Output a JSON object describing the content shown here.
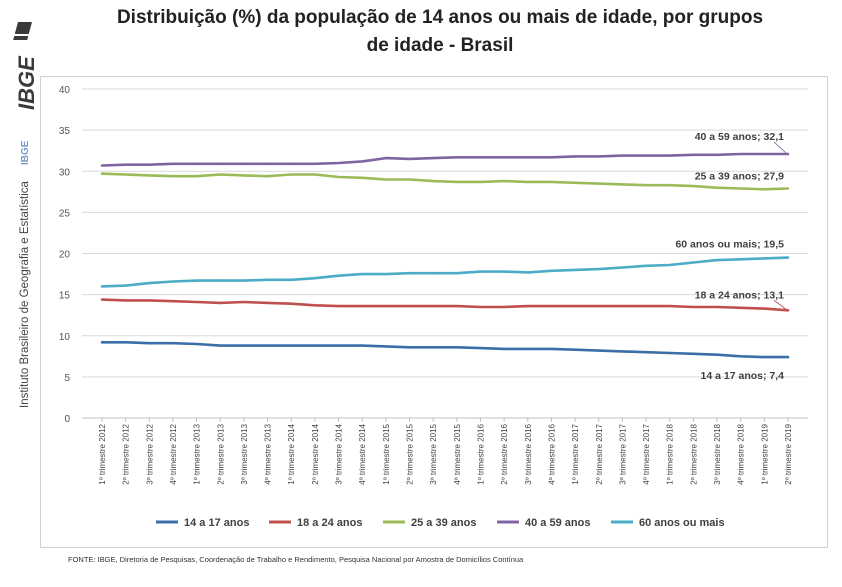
{
  "brand": {
    "logo": "IBGE",
    "institute": "Instituto Brasileiro de Geografia e Estatística",
    "acronym": "IBGE"
  },
  "colors": {
    "s1": "#3c6fa8",
    "s2": "#c0504d",
    "s3": "#9bbb59",
    "s4": "#8064a2",
    "s5": "#4bacc6"
  },
  "source": "FONTE: IBGE, Diretoria de Pesquisas, Coordenação de Trabalho e Rendimento, Pesquisa Nacional por Amostra de Domicílios Contínua",
  "chart_data": {
    "type": "line",
    "title": "Distribuição (%) da população de 14 anos ou mais de idade, por grupos de idade - Brasil",
    "title_lines": [
      "Distribuição (%) da população de 14 anos ou mais de idade, por grupos",
      "de idade - Brasil"
    ],
    "ylim": [
      0,
      40
    ],
    "yticks": [
      0,
      5,
      10,
      15,
      20,
      25,
      30,
      35,
      40
    ],
    "grid": true,
    "legend_position": "bottom",
    "categories": [
      "1º trimestre 2012",
      "2º trimestre 2012",
      "3º trimestre 2012",
      "4º trimestre 2012",
      "1º trimestre 2013",
      "2º trimestre 2013",
      "3º trimestre 2013",
      "4º trimestre 2013",
      "1º trimestre 2014",
      "2º trimestre 2014",
      "3º trimestre 2014",
      "4º trimestre 2014",
      "1º trimestre 2015",
      "2º trimestre 2015",
      "3º trimestre 2015",
      "4º trimestre 2015",
      "1º trimestre 2016",
      "2º trimestre 2016",
      "3º trimestre 2016",
      "4º trimestre 2016",
      "1º trimestre 2017",
      "2º trimestre 2017",
      "3º trimestre 2017",
      "4º trimestre 2017",
      "1º trimestre 2018",
      "2º trimestre 2018",
      "3º trimestre 2018",
      "4º trimestre 2018",
      "1º trimestre 2019",
      "2º trimestre 2019"
    ],
    "series": [
      {
        "name": "14 a 17 anos",
        "color": "#3c6fa8",
        "end_label": "14 a 17 anos; 7,4",
        "values": [
          9.2,
          9.2,
          9.1,
          9.1,
          9.0,
          8.8,
          8.8,
          8.8,
          8.8,
          8.8,
          8.8,
          8.8,
          8.7,
          8.6,
          8.6,
          8.6,
          8.5,
          8.4,
          8.4,
          8.4,
          8.3,
          8.2,
          8.1,
          8.0,
          7.9,
          7.8,
          7.7,
          7.5,
          7.4,
          7.4
        ]
      },
      {
        "name": "18 a 24 anos",
        "color": "#c0504d",
        "end_label": "18 a 24 anos; 13,1",
        "values": [
          14.4,
          14.3,
          14.3,
          14.2,
          14.1,
          14.0,
          14.1,
          14.0,
          13.9,
          13.7,
          13.6,
          13.6,
          13.6,
          13.6,
          13.6,
          13.6,
          13.5,
          13.5,
          13.6,
          13.6,
          13.6,
          13.6,
          13.6,
          13.6,
          13.6,
          13.5,
          13.5,
          13.4,
          13.3,
          13.1
        ]
      },
      {
        "name": "25 a 39 anos",
        "color": "#9bbb59",
        "end_label": "25 a 39 anos; 27,9",
        "values": [
          29.7,
          29.6,
          29.5,
          29.4,
          29.4,
          29.6,
          29.5,
          29.4,
          29.6,
          29.6,
          29.3,
          29.2,
          29.0,
          29.0,
          28.8,
          28.7,
          28.7,
          28.8,
          28.7,
          28.7,
          28.6,
          28.5,
          28.4,
          28.3,
          28.3,
          28.2,
          28.0,
          27.9,
          27.8,
          27.9
        ]
      },
      {
        "name": "40 a 59 anos",
        "color": "#8064a2",
        "end_label": "40 a 59 anos; 32,1",
        "values": [
          30.7,
          30.8,
          30.8,
          30.9,
          30.9,
          30.9,
          30.9,
          30.9,
          30.9,
          30.9,
          31.0,
          31.2,
          31.6,
          31.5,
          31.6,
          31.7,
          31.7,
          31.7,
          31.7,
          31.7,
          31.8,
          31.8,
          31.9,
          31.9,
          31.9,
          32.0,
          32.0,
          32.1,
          32.1,
          32.1
        ]
      },
      {
        "name": "60 anos ou mais",
        "color": "#4bacc6",
        "end_label": "60 anos ou mais; 19,5",
        "values": [
          16.0,
          16.1,
          16.4,
          16.6,
          16.7,
          16.7,
          16.7,
          16.8,
          16.8,
          17.0,
          17.3,
          17.5,
          17.5,
          17.6,
          17.6,
          17.6,
          17.8,
          17.8,
          17.7,
          17.9,
          18.0,
          18.1,
          18.3,
          18.5,
          18.6,
          18.9,
          19.2,
          19.3,
          19.4,
          19.5
        ]
      }
    ]
  }
}
